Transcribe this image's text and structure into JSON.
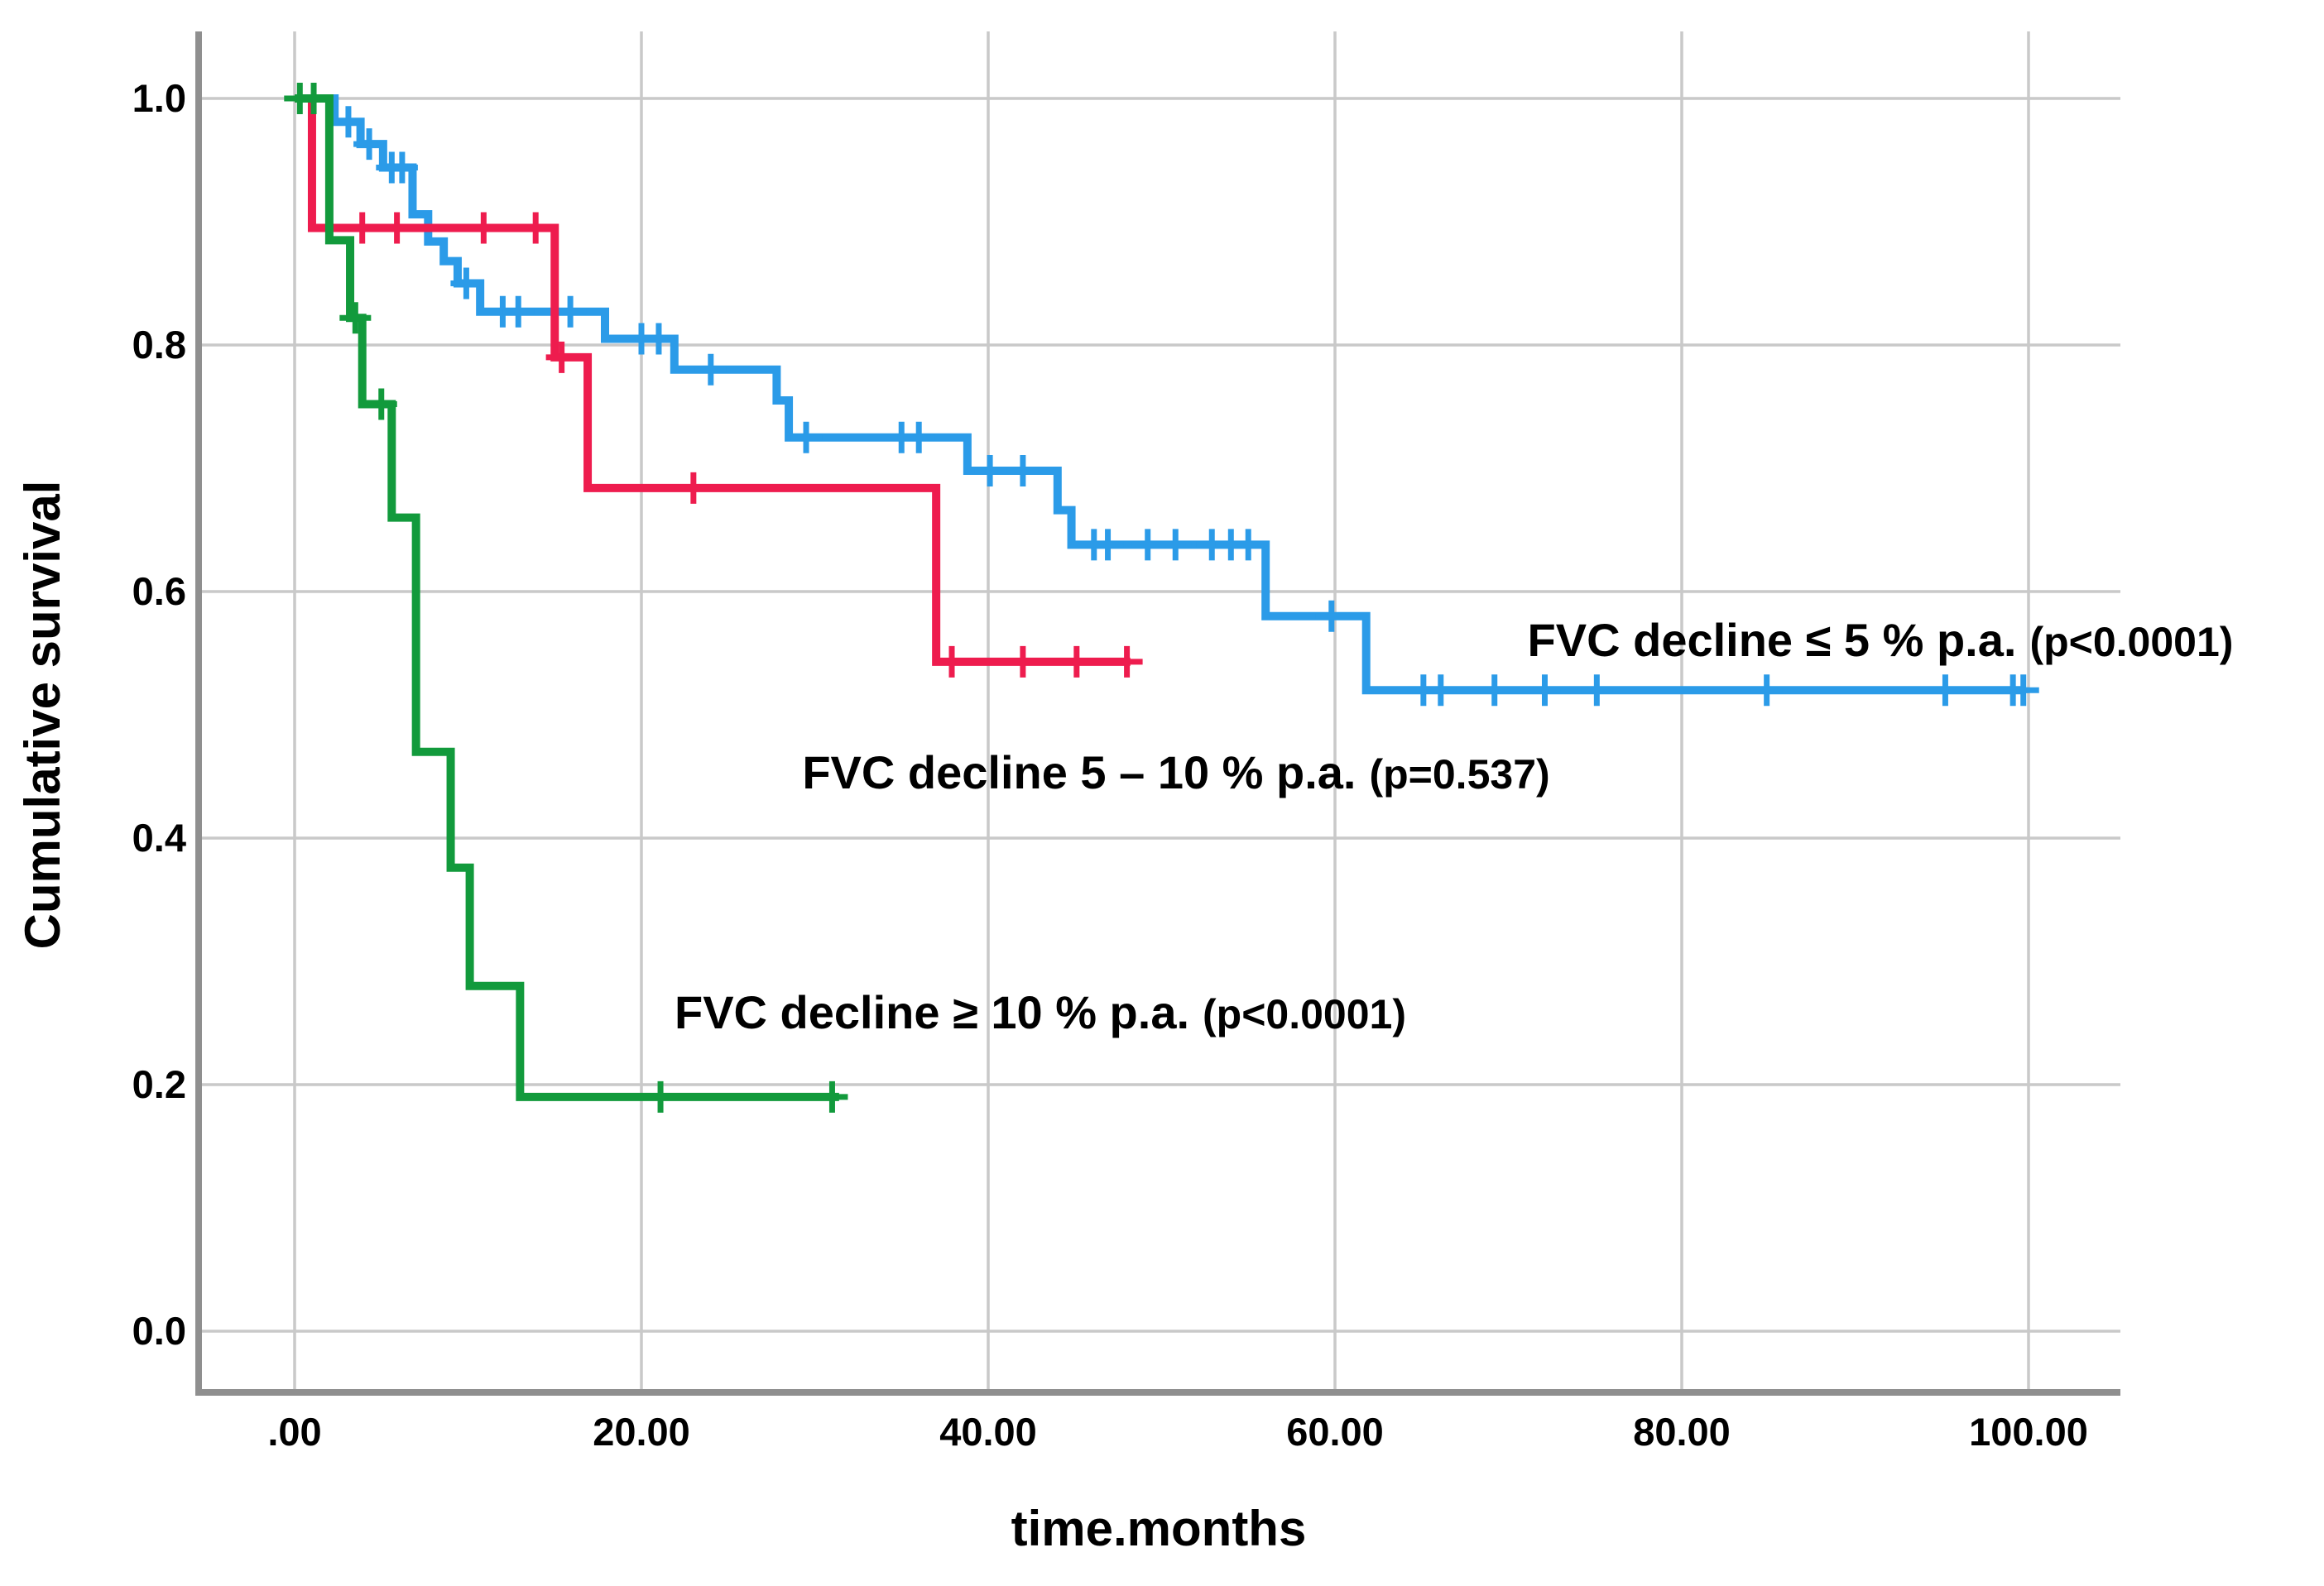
{
  "figure": {
    "background": "#ffffff",
    "frame_color": "#8f8f8f",
    "grid_color": "#c9c9c9"
  },
  "chart_data": {
    "type": "line",
    "subtype": "kaplan-meier-step-survival",
    "title": "",
    "xlabel": "time.months",
    "ylabel": "Cumulative survival",
    "xlim": [
      -5.5,
      105.3
    ],
    "ylim": [
      -0.05,
      1.054
    ],
    "grid": true,
    "legend_position": "inline-annotations",
    "x_ticks": [
      0,
      20,
      40,
      60,
      80,
      100
    ],
    "x_tick_labels": [
      ".00",
      "20.00",
      "40.00",
      "60.00",
      "80.00",
      "100.00"
    ],
    "y_ticks": [
      0.0,
      0.2,
      0.4,
      0.6,
      0.8,
      1.0
    ],
    "y_tick_labels": [
      "0.0",
      "0.2",
      "0.4",
      "0.6",
      "0.8",
      "1.0"
    ],
    "series": [
      {
        "name": "FVC decline ≤ 5 % p.a.",
        "p_value": "p<0.0001",
        "color": "#2b9be8",
        "end_time": 99.8,
        "steps": [
          [
            0,
            1.0
          ],
          [
            2.3,
            0.981
          ],
          [
            3.8,
            0.963
          ],
          [
            5.1,
            0.944
          ],
          [
            6.8,
            0.906
          ],
          [
            7.7,
            0.884
          ],
          [
            8.6,
            0.868
          ],
          [
            9.4,
            0.85
          ],
          [
            10.7,
            0.827
          ],
          [
            17.9,
            0.805
          ],
          [
            21.9,
            0.78
          ],
          [
            27.8,
            0.755
          ],
          [
            28.5,
            0.725
          ],
          [
            38.8,
            0.698
          ],
          [
            44.0,
            0.666
          ],
          [
            44.8,
            0.638
          ],
          [
            56.0,
            0.58
          ],
          [
            61.8,
            0.52
          ]
        ],
        "censors": [
          [
            3.1,
            0.981
          ],
          [
            4.3,
            0.963
          ],
          [
            5.6,
            0.944
          ],
          [
            6.2,
            0.944
          ],
          [
            9.9,
            0.85
          ],
          [
            12.0,
            0.827
          ],
          [
            12.9,
            0.827
          ],
          [
            15.9,
            0.827
          ],
          [
            20.0,
            0.805
          ],
          [
            21.0,
            0.805
          ],
          [
            24.0,
            0.78
          ],
          [
            29.5,
            0.725
          ],
          [
            35.0,
            0.725
          ],
          [
            36.0,
            0.725
          ],
          [
            40.1,
            0.698
          ],
          [
            42.0,
            0.698
          ],
          [
            46.1,
            0.638
          ],
          [
            46.9,
            0.638
          ],
          [
            49.2,
            0.638
          ],
          [
            50.8,
            0.638
          ],
          [
            52.9,
            0.638
          ],
          [
            54.0,
            0.638
          ],
          [
            55.0,
            0.638
          ],
          [
            59.8,
            0.58
          ],
          [
            65.1,
            0.52
          ],
          [
            66.1,
            0.52
          ],
          [
            69.2,
            0.52
          ],
          [
            72.1,
            0.52
          ],
          [
            75.1,
            0.52
          ],
          [
            84.9,
            0.52
          ],
          [
            95.2,
            0.52
          ],
          [
            99.1,
            0.52
          ],
          [
            99.7,
            0.52
          ]
        ]
      },
      {
        "name": "FVC decline 5 – 10 % p.a.",
        "p_value": "p=0.537",
        "color": "#ee1c4e",
        "end_time": 48.2,
        "steps": [
          [
            0,
            1.0
          ],
          [
            1.0,
            0.895
          ],
          [
            15.0,
            0.79
          ],
          [
            16.9,
            0.684
          ],
          [
            37.0,
            0.543
          ]
        ],
        "censors": [
          [
            2.0,
            0.895
          ],
          [
            3.9,
            0.895
          ],
          [
            5.9,
            0.895
          ],
          [
            10.9,
            0.895
          ],
          [
            13.9,
            0.895
          ],
          [
            15.4,
            0.79
          ],
          [
            23.0,
            0.684
          ],
          [
            37.9,
            0.543
          ],
          [
            42.0,
            0.543
          ],
          [
            45.1,
            0.543
          ],
          [
            48.0,
            0.543
          ]
        ]
      },
      {
        "name": "FVC decline ≥ 10 % p.a.",
        "p_value": "p<0.0001",
        "color": "#129a3c",
        "end_time": 31.4,
        "steps": [
          [
            0,
            1.0
          ],
          [
            2.0,
            0.885
          ],
          [
            3.2,
            0.822
          ],
          [
            3.9,
            0.752
          ],
          [
            5.6,
            0.66
          ],
          [
            7.0,
            0.47
          ],
          [
            9.0,
            0.376
          ],
          [
            10.1,
            0.28
          ],
          [
            13.0,
            0.19
          ]
        ],
        "censors": [
          [
            0.3,
            1.0
          ],
          [
            1.1,
            1.0
          ],
          [
            3.5,
            0.822
          ],
          [
            5.0,
            0.752
          ],
          [
            21.1,
            0.19
          ],
          [
            31.0,
            0.19
          ]
        ]
      }
    ],
    "annotations": [
      {
        "series": "blue",
        "text_main": "FVC decline ≤ 5 % p.a.",
        "text_paren": "(p<0.0001)"
      },
      {
        "series": "red",
        "text_main": "FVC decline  5 – 10 % p.a.",
        "text_paren": "(p=0.537)"
      },
      {
        "series": "green",
        "text_main": "FVC decline ≥ 10 % p.a.",
        "text_paren": "(p<0.0001)"
      }
    ]
  }
}
